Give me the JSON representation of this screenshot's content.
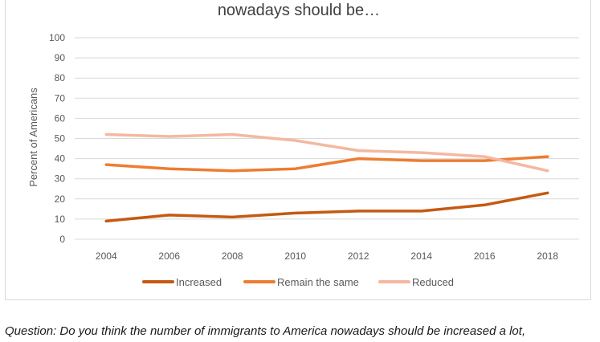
{
  "page": {
    "question": "Question: Do you think the number of immigrants to America nowadays should be increased a lot,"
  },
  "chart_data": {
    "type": "line",
    "title": "nowadays should be…",
    "xlabel": "",
    "ylabel": "Percent of Americans",
    "categories": [
      "2004",
      "2006",
      "2008",
      "2010",
      "2012",
      "2014",
      "2016",
      "2018"
    ],
    "ylim": [
      0,
      100
    ],
    "yticks": [
      0,
      10,
      20,
      30,
      40,
      50,
      60,
      70,
      80,
      90,
      100
    ],
    "grid": true,
    "legend_position": "bottom",
    "series": [
      {
        "name": "Increased",
        "color": "#c55a11",
        "values": [
          9,
          12,
          11,
          13,
          14,
          14,
          17,
          23
        ]
      },
      {
        "name": "Remain the same",
        "color": "#ed7d31",
        "values": [
          37,
          35,
          34,
          35,
          40,
          39,
          39,
          41
        ]
      },
      {
        "name": "Reduced",
        "color": "#f4b8a0",
        "values": [
          52,
          51,
          52,
          49,
          44,
          43,
          41,
          34
        ]
      }
    ]
  }
}
